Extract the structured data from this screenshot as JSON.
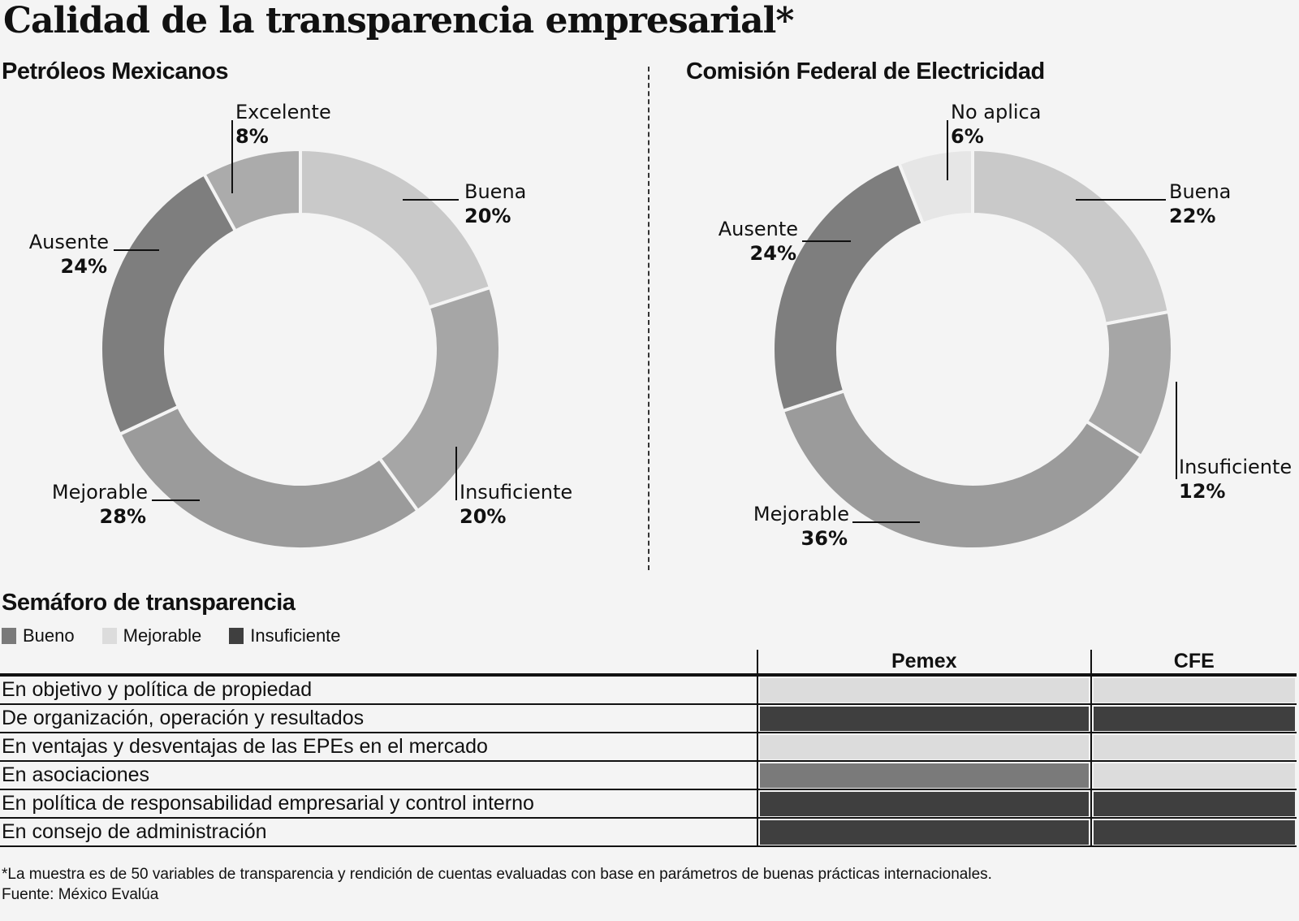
{
  "title": "Calidad de la transparencia empresarial*",
  "chart_data": [
    {
      "type": "pie",
      "variant": "donut",
      "title": "Petróleos Mexicanos",
      "start": "top",
      "direction": "clockwise",
      "slices": [
        {
          "label": "Buena",
          "value": 20,
          "pct_label": "20%",
          "color": "#c9c9c9"
        },
        {
          "label": "Insuficiente",
          "value": 20,
          "pct_label": "20%",
          "color": "#a6a6a6"
        },
        {
          "label": "Mejorable",
          "value": 28,
          "pct_label": "28%",
          "color": "#9b9b9b"
        },
        {
          "label": "Ausente",
          "value": 24,
          "pct_label": "24%",
          "color": "#7e7e7e"
        },
        {
          "label": "Excelente",
          "value": 8,
          "pct_label": "8%",
          "color": "#ababab"
        }
      ]
    },
    {
      "type": "pie",
      "variant": "donut",
      "title": "Comisión Federal de Electricidad",
      "start": "top",
      "direction": "clockwise",
      "slices": [
        {
          "label": "Buena",
          "value": 22,
          "pct_label": "22%",
          "color": "#c9c9c9"
        },
        {
          "label": "Insuficiente",
          "value": 12,
          "pct_label": "12%",
          "color": "#a6a6a6"
        },
        {
          "label": "Mejorable",
          "value": 36,
          "pct_label": "36%",
          "color": "#9b9b9b"
        },
        {
          "label": "Ausente",
          "value": 24,
          "pct_label": "24%",
          "color": "#7e7e7e"
        },
        {
          "label": "No aplica",
          "value": 6,
          "pct_label": "6%",
          "color": "#e6e6e6"
        }
      ]
    },
    {
      "type": "table",
      "title": "Semáforo de transparencia",
      "legend": [
        {
          "label": "Bueno",
          "color": "#7a7a7a"
        },
        {
          "label": "Mejorable",
          "color": "#dcdcdc"
        },
        {
          "label": "Insuficiente",
          "color": "#3f3f3f"
        }
      ],
      "columns": [
        "Pemex",
        "CFE"
      ],
      "rows": [
        {
          "label": "En objetivo y política de propiedad",
          "values": [
            "Mejorable",
            "Mejorable"
          ]
        },
        {
          "label": "De organización, operación y resultados",
          "values": [
            "Insuficiente",
            "Insuficiente"
          ]
        },
        {
          "label": "En ventajas y desventajas de las EPEs en el mercado",
          "values": [
            "Mejorable",
            "Mejorable"
          ]
        },
        {
          "label": "En asociaciones",
          "values": [
            "Bueno",
            "Mejorable"
          ]
        },
        {
          "label": "En política de responsabilidad empresarial y control interno",
          "values": [
            "Insuficiente",
            "Insuficiente"
          ]
        },
        {
          "label": "En consejo de administración",
          "values": [
            "Insuficiente",
            "Insuficiente"
          ]
        }
      ]
    }
  ],
  "status_colors": {
    "Bueno": "#7a7a7a",
    "Mejorable": "#dcdcdc",
    "Insuficiente": "#3f3f3f"
  },
  "footnote": "*La muestra es de 50 variables de transparencia y rendición de cuentas evaluadas con base en parámetros de buenas prácticas internacionales.",
  "source": "Fuente: México Evalúa"
}
